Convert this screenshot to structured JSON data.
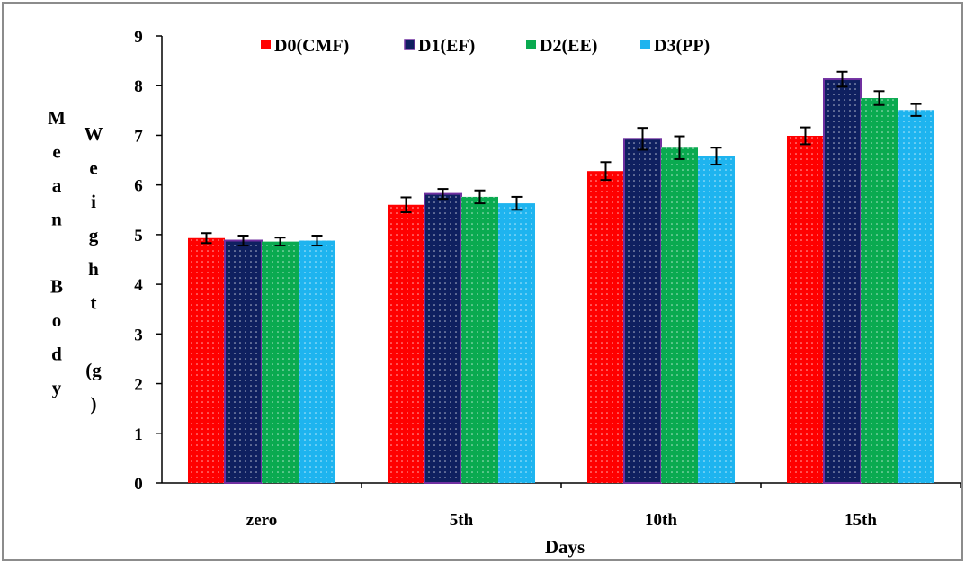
{
  "chart_data": {
    "type": "bar",
    "title": "",
    "xlabel": "Days",
    "ylabel_col1": [
      "M",
      "e",
      "a",
      "n",
      "",
      "B",
      "o",
      "d",
      "y"
    ],
    "ylabel_col2": [
      "W",
      "e",
      "i",
      "g",
      "h",
      "t",
      "",
      "(g",
      ")"
    ],
    "ylim": [
      0,
      9
    ],
    "yticks": [
      "0",
      "1",
      "2",
      "3",
      "4",
      "5",
      "6",
      "7",
      "8",
      "9"
    ],
    "categories": [
      "zero",
      "5th",
      "10th",
      "15th"
    ],
    "legend_position": "top",
    "series": [
      {
        "name": "D0(CMF)",
        "color": "#ff0000",
        "values": [
          4.93,
          5.6,
          6.28,
          6.99
        ],
        "errors": [
          0.1,
          0.15,
          0.18,
          0.17
        ]
      },
      {
        "name": "D1(EF)",
        "color": "#0f2060",
        "values": [
          4.88,
          5.82,
          6.93,
          8.13
        ],
        "errors": [
          0.1,
          0.1,
          0.22,
          0.15
        ]
      },
      {
        "name": "D2(EE)",
        "color": "#0aaa50",
        "values": [
          4.86,
          5.76,
          6.75,
          7.75
        ],
        "errors": [
          0.08,
          0.13,
          0.23,
          0.14
        ]
      },
      {
        "name": "D3(PP)",
        "color": "#1eb4ef",
        "values": [
          4.88,
          5.63,
          6.58,
          7.51
        ],
        "errors": [
          0.1,
          0.13,
          0.17,
          0.12
        ]
      }
    ]
  }
}
